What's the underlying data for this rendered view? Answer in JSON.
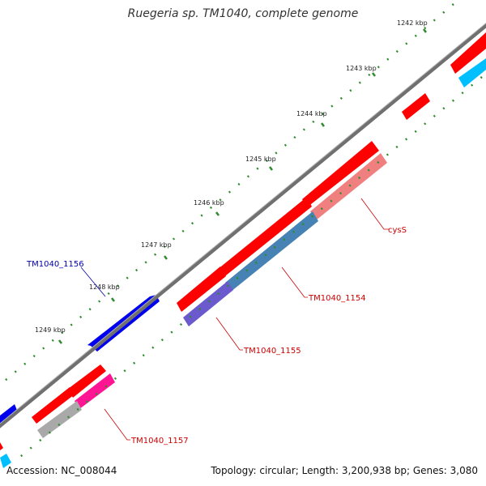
{
  "title": "Ruegeria sp. TM1040, complete genome",
  "footer": {
    "accession": "Accession: NC_008044",
    "summary": "Topology: circular; Length: 3,200,938 bp; Genes: 3,080"
  },
  "tick_labels": [
    "1242 kbp",
    "1243 kbp",
    "1244 kbp",
    "1245 kbp",
    "1246 kbp",
    "1247 kbp",
    "1248 kbp",
    "1249 kbp"
  ],
  "gene_labels": [
    {
      "text": "cysS",
      "color": "#cc0000"
    },
    {
      "text": "TM1040_1154",
      "color": "#cc0000"
    },
    {
      "text": "TM1040_1155",
      "color": "#cc0000"
    },
    {
      "text": "TM1040_1156",
      "color": "#0000aa"
    },
    {
      "text": "TM1040_1157",
      "color": "#cc0000"
    }
  ],
  "colors": {
    "forward_cds": "#ff0000",
    "reverse_cds": "#0000ff",
    "backbone": "#808080",
    "ticks": "#2e8b2e",
    "cog_blue": "#4682b4",
    "cog_pink": "#f08080",
    "cog_purple": "#6a5acd",
    "cog_magenta": "#ff1493",
    "cog_grey": "#a9a9a9",
    "cog_cyan": "#00bfff"
  }
}
